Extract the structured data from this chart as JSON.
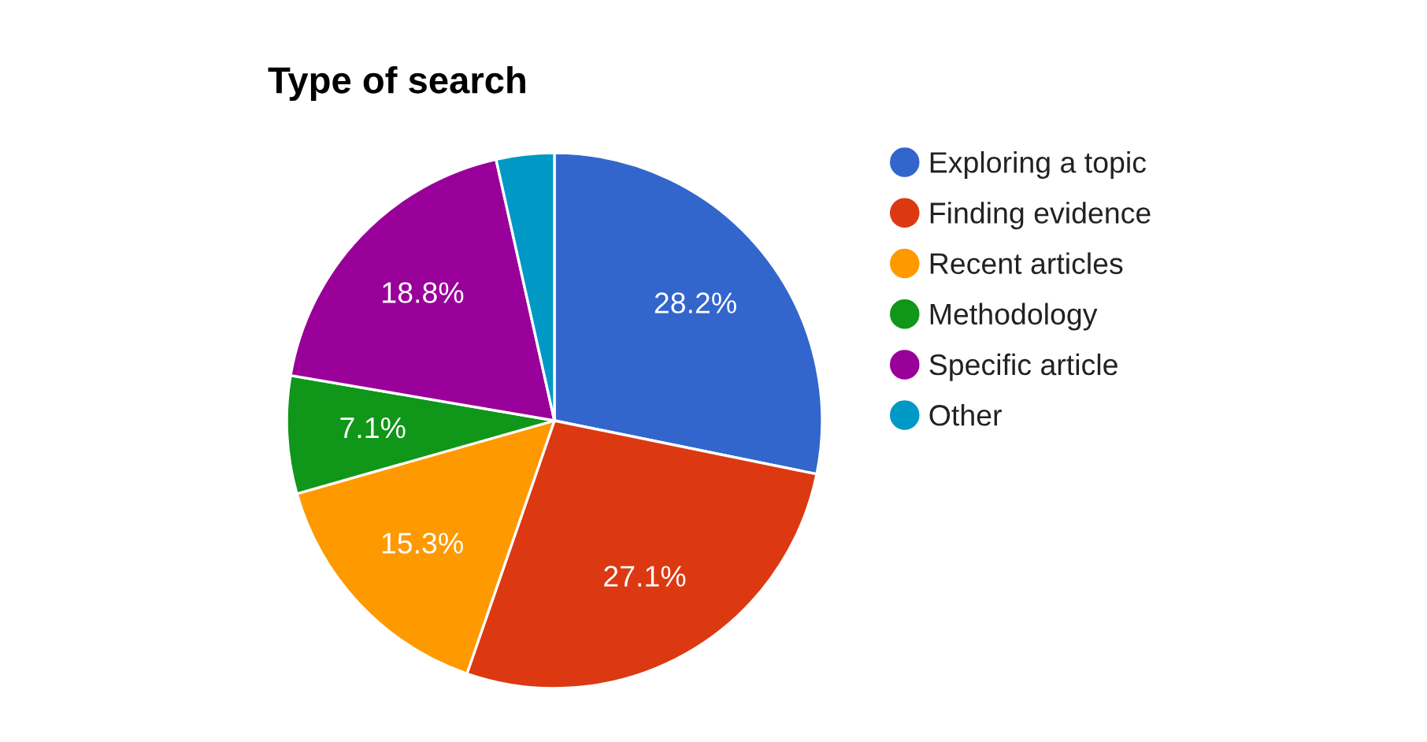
{
  "chart_data": {
    "type": "pie",
    "title": "Type of search",
    "categories": [
      "Exploring a topic",
      "Finding evidence",
      "Recent articles",
      "Methodology",
      "Specific article",
      "Other"
    ],
    "values": [
      28.2,
      27.1,
      15.3,
      7.1,
      18.8,
      3.5
    ],
    "colors": [
      "#3366cc",
      "#dc3912",
      "#ff9900",
      "#109618",
      "#990099",
      "#0099c6"
    ],
    "value_labels": [
      "28.2%",
      "27.1%",
      "15.3%",
      "7.1%",
      "18.8%",
      null
    ],
    "legend": "right"
  }
}
